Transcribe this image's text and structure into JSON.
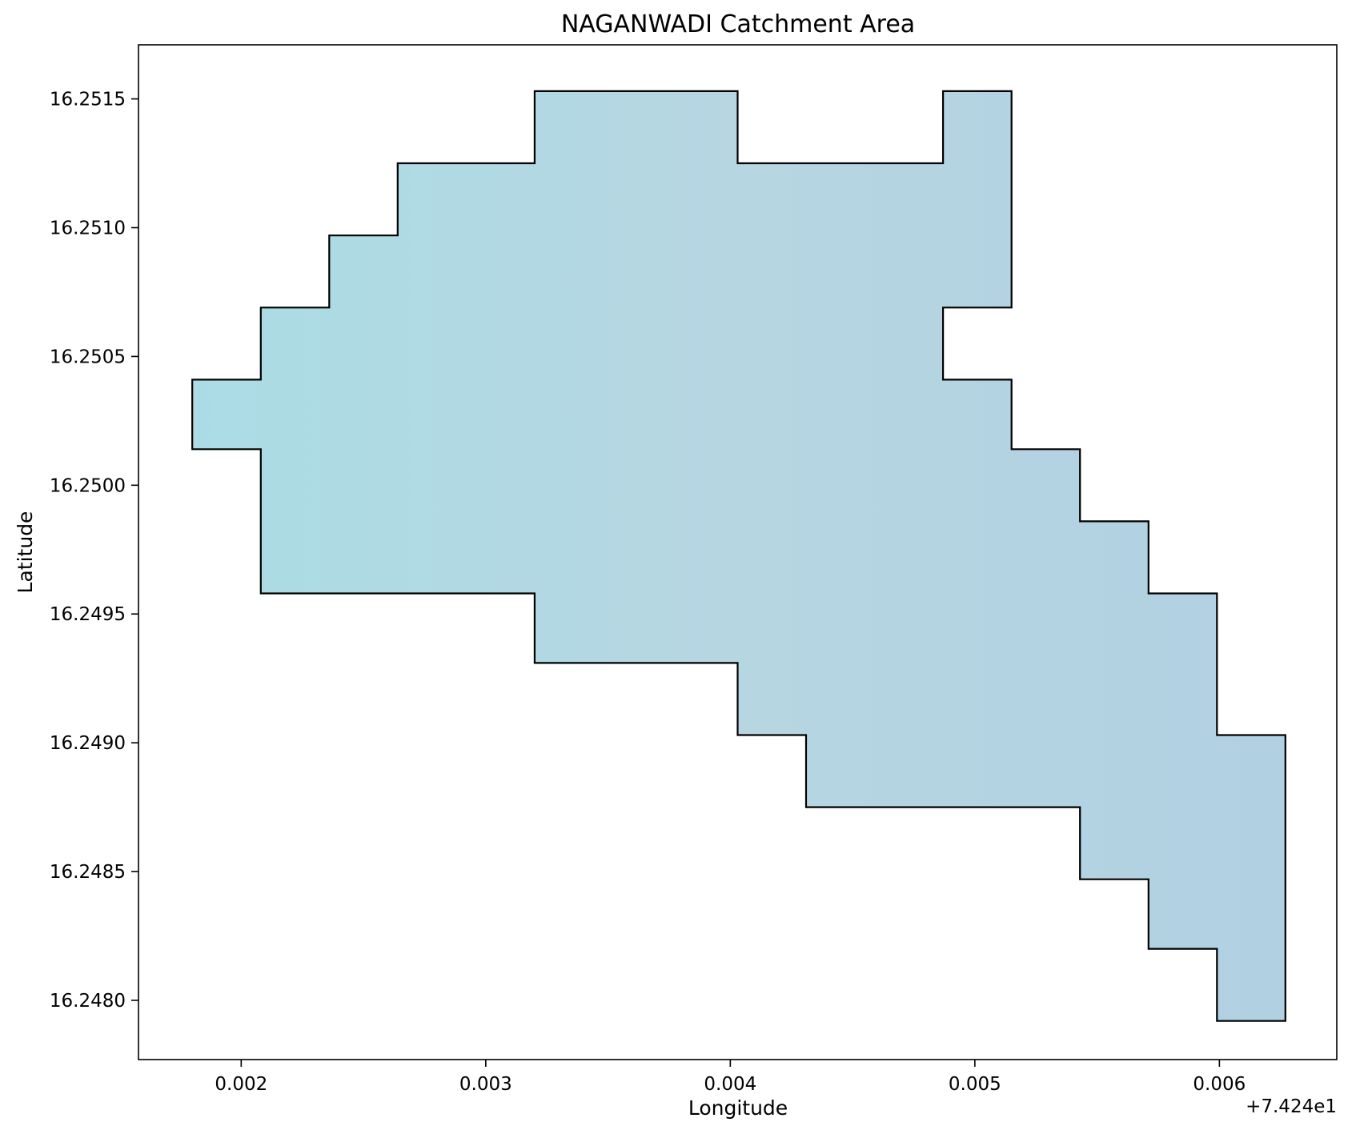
{
  "chart_data": {
    "type": "area",
    "title": "NAGANWADI Catchment Area",
    "xlabel": "Longitude",
    "ylabel": "Latitude",
    "x_offset_label": "+7.424e1",
    "x_ticks": [
      "0.002",
      "0.003",
      "0.004",
      "0.005",
      "0.006"
    ],
    "y_ticks": [
      "16.2480",
      "16.2485",
      "16.2490",
      "16.2495",
      "16.2500",
      "16.2505",
      "16.2510",
      "16.2515"
    ],
    "xlim": [
      0.00158,
      0.00648
    ],
    "ylim": [
      16.24777,
      16.25171
    ],
    "grid": false,
    "fill_gradient": [
      "#abdce5",
      "#b6d6e2",
      "#b1d0e2"
    ],
    "edge_color": "#000000",
    "polygon": [
      [
        0.0032,
        16.25153
      ],
      [
        0.00403,
        16.25153
      ],
      [
        0.00403,
        16.25125
      ],
      [
        0.00487,
        16.25125
      ],
      [
        0.00487,
        16.25153
      ],
      [
        0.00515,
        16.25153
      ],
      [
        0.00515,
        16.25069
      ],
      [
        0.00487,
        16.25069
      ],
      [
        0.00487,
        16.25041
      ],
      [
        0.00515,
        16.25041
      ],
      [
        0.00515,
        16.25014
      ],
      [
        0.00543,
        16.25014
      ],
      [
        0.00543,
        16.24986
      ],
      [
        0.00571,
        16.24986
      ],
      [
        0.00571,
        16.24958
      ],
      [
        0.00599,
        16.24958
      ],
      [
        0.00599,
        16.24903
      ],
      [
        0.00627,
        16.24903
      ],
      [
        0.00627,
        16.24792
      ],
      [
        0.00599,
        16.24792
      ],
      [
        0.00599,
        16.2482
      ],
      [
        0.00571,
        16.2482
      ],
      [
        0.00571,
        16.24847
      ],
      [
        0.00543,
        16.24847
      ],
      [
        0.00543,
        16.24875
      ],
      [
        0.00431,
        16.24875
      ],
      [
        0.00431,
        16.24903
      ],
      [
        0.00403,
        16.24903
      ],
      [
        0.00403,
        16.24931
      ],
      [
        0.0032,
        16.24931
      ],
      [
        0.0032,
        16.24958
      ],
      [
        0.00208,
        16.24958
      ],
      [
        0.00208,
        16.25014
      ],
      [
        0.0018,
        16.25014
      ],
      [
        0.0018,
        16.25041
      ],
      [
        0.00208,
        16.25041
      ],
      [
        0.00208,
        16.25069
      ],
      [
        0.00236,
        16.25069
      ],
      [
        0.00236,
        16.25097
      ],
      [
        0.00264,
        16.25097
      ],
      [
        0.00264,
        16.25125
      ],
      [
        0.0032,
        16.25125
      ]
    ]
  }
}
